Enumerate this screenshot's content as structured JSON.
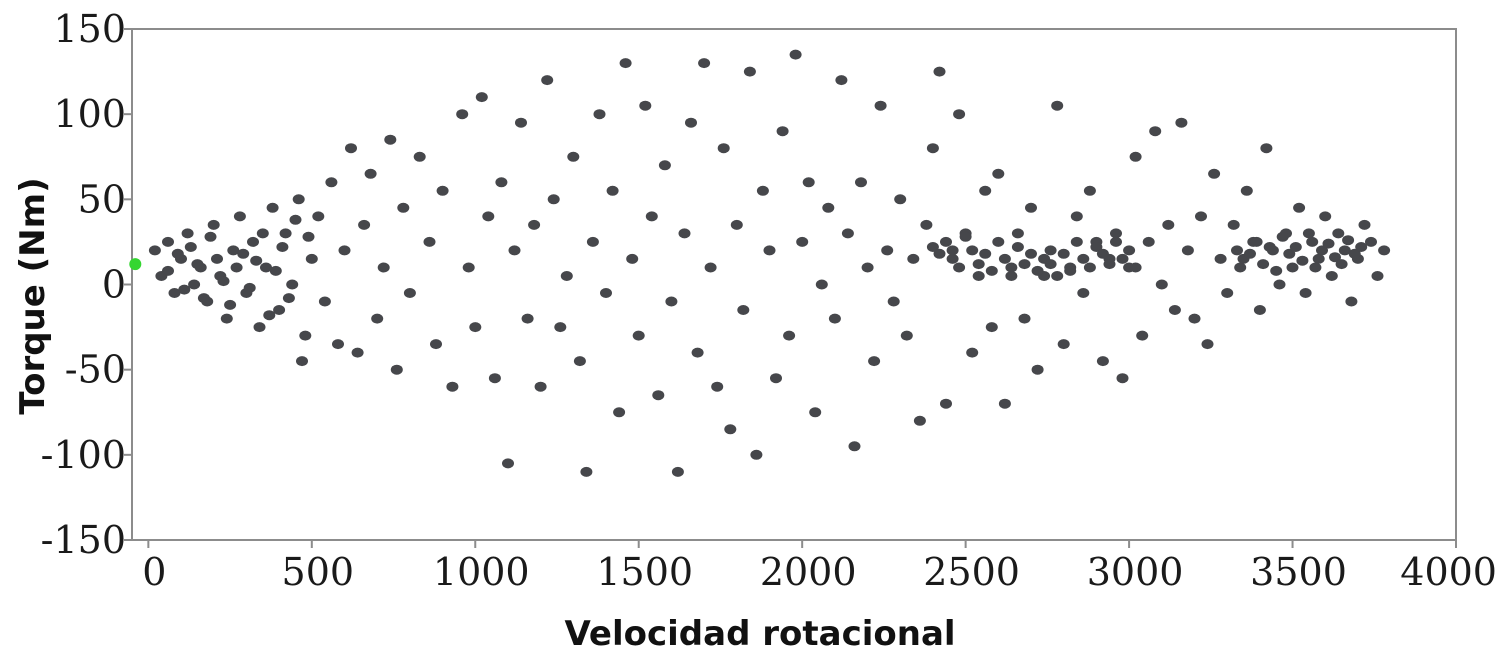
{
  "chart_data": {
    "type": "scatter",
    "title": "",
    "xlabel": "Velocidad rotacional",
    "ylabel": "Torque (Nm)",
    "xlim": [
      -50,
      4000
    ],
    "ylim": [
      -150,
      150
    ],
    "x_ticks": [
      "0",
      "500",
      "1000",
      "1500",
      "2000",
      "2500",
      "3000",
      "3500",
      "4000"
    ],
    "y_ticks": [
      "150",
      "100",
      "50",
      "0",
      "-50",
      "-100",
      "-150"
    ],
    "grid": false,
    "legend": "none",
    "colors": {
      "points": "#46474b",
      "highlight": "#34d631",
      "axis": "#8c8c8c"
    },
    "series": [
      {
        "color": "#46474b",
        "points": [
          [
            20,
            20
          ],
          [
            40,
            5
          ],
          [
            60,
            25
          ],
          [
            80,
            -5
          ],
          [
            100,
            15
          ],
          [
            120,
            30
          ],
          [
            140,
            0
          ],
          [
            160,
            10
          ],
          [
            180,
            -10
          ],
          [
            200,
            35
          ],
          [
            220,
            5
          ],
          [
            240,
            -20
          ],
          [
            260,
            20
          ],
          [
            280,
            40
          ],
          [
            300,
            -5
          ],
          [
            320,
            25
          ],
          [
            340,
            -25
          ],
          [
            360,
            10
          ],
          [
            380,
            45
          ],
          [
            400,
            -15
          ],
          [
            420,
            30
          ],
          [
            440,
            0
          ],
          [
            460,
            50
          ],
          [
            480,
            -30
          ],
          [
            500,
            15
          ],
          [
            520,
            40
          ],
          [
            540,
            -10
          ],
          [
            560,
            60
          ],
          [
            580,
            -35
          ],
          [
            600,
            20
          ],
          [
            620,
            80
          ],
          [
            640,
            -40
          ],
          [
            660,
            35
          ],
          [
            680,
            65
          ],
          [
            700,
            -20
          ],
          [
            720,
            10
          ],
          [
            740,
            85
          ],
          [
            760,
            -50
          ],
          [
            780,
            45
          ],
          [
            800,
            -5
          ],
          [
            830,
            75
          ],
          [
            860,
            25
          ],
          [
            880,
            -35
          ],
          [
            900,
            55
          ],
          [
            930,
            -60
          ],
          [
            960,
            100
          ],
          [
            980,
            10
          ],
          [
            1000,
            -25
          ],
          [
            1020,
            110
          ],
          [
            1040,
            40
          ],
          [
            1060,
            -55
          ],
          [
            1080,
            60
          ],
          [
            1100,
            -105
          ],
          [
            1120,
            20
          ],
          [
            1140,
            95
          ],
          [
            1160,
            -20
          ],
          [
            1180,
            35
          ],
          [
            1200,
            -60
          ],
          [
            1220,
            120
          ],
          [
            1240,
            50
          ],
          [
            1260,
            -25
          ],
          [
            1280,
            5
          ],
          [
            1300,
            75
          ],
          [
            1320,
            -45
          ],
          [
            1340,
            -110
          ],
          [
            1360,
            25
          ],
          [
            1380,
            100
          ],
          [
            1400,
            -5
          ],
          [
            1420,
            55
          ],
          [
            1440,
            -75
          ],
          [
            1460,
            130
          ],
          [
            1480,
            15
          ],
          [
            1500,
            -30
          ],
          [
            1520,
            105
          ],
          [
            1540,
            40
          ],
          [
            1560,
            -65
          ],
          [
            1580,
            70
          ],
          [
            1600,
            -10
          ],
          [
            1620,
            -110
          ],
          [
            1640,
            30
          ],
          [
            1660,
            95
          ],
          [
            1680,
            -40
          ],
          [
            1700,
            130
          ],
          [
            1720,
            10
          ],
          [
            1740,
            -60
          ],
          [
            1760,
            80
          ],
          [
            1780,
            -85
          ],
          [
            1800,
            35
          ],
          [
            1820,
            -15
          ],
          [
            1840,
            125
          ],
          [
            1860,
            -100
          ],
          [
            1880,
            55
          ],
          [
            1900,
            20
          ],
          [
            1920,
            -55
          ],
          [
            1940,
            90
          ],
          [
            1960,
            -30
          ],
          [
            1980,
            135
          ],
          [
            2000,
            25
          ],
          [
            2020,
            60
          ],
          [
            2040,
            -75
          ],
          [
            2060,
            0
          ],
          [
            2080,
            45
          ],
          [
            2100,
            -20
          ],
          [
            2120,
            120
          ],
          [
            2140,
            30
          ],
          [
            2160,
            -95
          ],
          [
            2180,
            60
          ],
          [
            2200,
            10
          ],
          [
            2220,
            -45
          ],
          [
            2240,
            105
          ],
          [
            2260,
            20
          ],
          [
            2280,
            -10
          ],
          [
            2300,
            50
          ],
          [
            2320,
            -30
          ],
          [
            2340,
            15
          ],
          [
            2360,
            -80
          ],
          [
            2380,
            35
          ],
          [
            2400,
            80
          ],
          [
            2420,
            125
          ],
          [
            2440,
            -70
          ],
          [
            2460,
            20
          ],
          [
            2480,
            100
          ],
          [
            2500,
            30
          ],
          [
            2520,
            -40
          ],
          [
            2540,
            5
          ],
          [
            2560,
            55
          ],
          [
            2580,
            -25
          ],
          [
            2600,
            65
          ],
          [
            2620,
            -70
          ],
          [
            2640,
            10
          ],
          [
            2660,
            30
          ],
          [
            2680,
            -20
          ],
          [
            2700,
            45
          ],
          [
            2720,
            -50
          ],
          [
            2740,
            5
          ],
          [
            2760,
            20
          ],
          [
            2780,
            105
          ],
          [
            2800,
            -35
          ],
          [
            2820,
            10
          ],
          [
            2840,
            40
          ],
          [
            2860,
            -5
          ],
          [
            2880,
            55
          ],
          [
            2900,
            25
          ],
          [
            2920,
            -45
          ],
          [
            2940,
            15
          ],
          [
            2960,
            30
          ],
          [
            2980,
            -55
          ],
          [
            3000,
            10
          ],
          [
            3020,
            75
          ],
          [
            3040,
            -30
          ],
          [
            3060,
            25
          ],
          [
            3080,
            90
          ],
          [
            3100,
            0
          ],
          [
            3120,
            35
          ],
          [
            3140,
            -15
          ],
          [
            3160,
            95
          ],
          [
            3180,
            20
          ],
          [
            3200,
            -20
          ],
          [
            3220,
            40
          ],
          [
            3240,
            -35
          ],
          [
            3260,
            65
          ],
          [
            3280,
            15
          ],
          [
            3300,
            -5
          ],
          [
            3320,
            35
          ],
          [
            3340,
            10
          ],
          [
            3360,
            55
          ],
          [
            3380,
            25
          ],
          [
            3400,
            -15
          ],
          [
            3420,
            80
          ],
          [
            3440,
            20
          ],
          [
            3460,
            0
          ],
          [
            3480,
            30
          ],
          [
            3500,
            10
          ],
          [
            3520,
            45
          ],
          [
            3540,
            -5
          ],
          [
            3560,
            25
          ],
          [
            3580,
            15
          ],
          [
            3600,
            40
          ],
          [
            3620,
            5
          ],
          [
            3640,
            30
          ],
          [
            3660,
            20
          ],
          [
            3680,
            -10
          ],
          [
            3700,
            15
          ],
          [
            3720,
            35
          ],
          [
            3740,
            25
          ],
          [
            3760,
            5
          ],
          [
            3780,
            20
          ],
          [
            60,
            8
          ],
          [
            90,
            18
          ],
          [
            110,
            -3
          ],
          [
            130,
            22
          ],
          [
            150,
            12
          ],
          [
            170,
            -8
          ],
          [
            190,
            28
          ],
          [
            210,
            15
          ],
          [
            230,
            2
          ],
          [
            250,
            -12
          ],
          [
            270,
            10
          ],
          [
            290,
            18
          ],
          [
            310,
            -2
          ],
          [
            330,
            14
          ],
          [
            350,
            30
          ],
          [
            370,
            -18
          ],
          [
            390,
            8
          ],
          [
            410,
            22
          ],
          [
            430,
            -8
          ],
          [
            450,
            38
          ],
          [
            470,
            -45
          ],
          [
            490,
            28
          ],
          [
            3330,
            20
          ],
          [
            3350,
            15
          ],
          [
            3370,
            18
          ],
          [
            3390,
            25
          ],
          [
            3410,
            12
          ],
          [
            3430,
            22
          ],
          [
            3450,
            8
          ],
          [
            3470,
            28
          ],
          [
            3490,
            18
          ],
          [
            3510,
            22
          ],
          [
            3530,
            14
          ],
          [
            3550,
            30
          ],
          [
            3570,
            10
          ],
          [
            3590,
            20
          ],
          [
            3610,
            24
          ],
          [
            3630,
            16
          ],
          [
            3650,
            12
          ],
          [
            3670,
            26
          ],
          [
            3690,
            18
          ],
          [
            3710,
            22
          ],
          [
            2400,
            22
          ],
          [
            2420,
            18
          ],
          [
            2440,
            25
          ],
          [
            2460,
            15
          ],
          [
            2480,
            10
          ],
          [
            2500,
            28
          ],
          [
            2520,
            20
          ],
          [
            2540,
            12
          ],
          [
            2560,
            18
          ],
          [
            2580,
            8
          ],
          [
            2600,
            25
          ],
          [
            2620,
            15
          ],
          [
            2640,
            5
          ],
          [
            2660,
            22
          ],
          [
            2680,
            12
          ],
          [
            2700,
            18
          ],
          [
            2720,
            8
          ],
          [
            2740,
            15
          ],
          [
            2760,
            12
          ],
          [
            2780,
            5
          ],
          [
            2800,
            18
          ],
          [
            2820,
            8
          ],
          [
            2840,
            25
          ],
          [
            2860,
            15
          ],
          [
            2880,
            10
          ],
          [
            2900,
            22
          ],
          [
            2920,
            18
          ],
          [
            2940,
            12
          ],
          [
            2960,
            25
          ],
          [
            2980,
            15
          ],
          [
            3000,
            20
          ],
          [
            3020,
            10
          ]
        ]
      },
      {
        "color": "#34d631",
        "points": [
          [
            -40,
            12
          ]
        ]
      }
    ]
  }
}
